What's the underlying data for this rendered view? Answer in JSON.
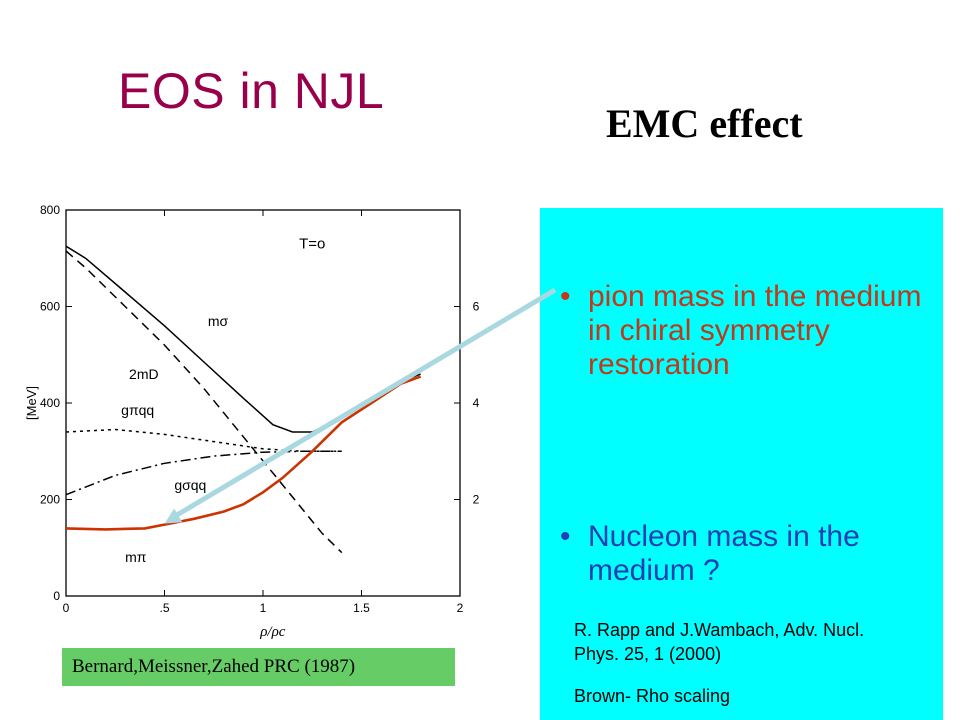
{
  "slide": {
    "title": "EOS in NJL",
    "subtitle": "EMC effect",
    "caption": "Bernard,Meissner,Zahed PRC (1987)"
  },
  "panel": {
    "bullets": [
      "pion mass in the medium in chiral symmetry restoration",
      "Nucleon mass in the medium ?"
    ],
    "bullet_symbol": "•",
    "reference": "R. Rapp and J.Wambach, Adv. Nucl. Phys. 25, 1 (2000)",
    "note": "Brown- Rho scaling",
    "color": "#00ffff"
  },
  "chart_data": {
    "type": "line",
    "title": "",
    "annotation": "T=o",
    "xlabel": "ρ/ρc",
    "ylabel": "[MeV]",
    "xlim": [
      0,
      2
    ],
    "ylim": [
      0,
      800
    ],
    "y2lim": [
      0,
      8
    ],
    "x_ticks": [
      "0",
      ".5",
      "1",
      "1.5",
      "2"
    ],
    "y_ticks": [
      "0",
      "200",
      "400",
      "600",
      "800"
    ],
    "y2_ticks": [
      "2",
      "4",
      "6"
    ],
    "series": [
      {
        "name": "mσ",
        "style": "solid",
        "color": "#000000",
        "x": [
          0,
          0.1,
          0.3,
          0.5,
          0.7,
          0.9,
          1.05,
          1.15,
          1.25,
          1.4,
          1.55,
          1.7,
          1.8
        ],
        "y": [
          725,
          700,
          630,
          560,
          485,
          410,
          355,
          340,
          340,
          370,
          410,
          445,
          460
        ]
      },
      {
        "name": "2mD",
        "style": "dashed",
        "color": "#000000",
        "x": [
          0,
          0.1,
          0.3,
          0.5,
          0.7,
          0.9,
          1.0,
          1.1,
          1.2,
          1.3,
          1.4
        ],
        "y": [
          715,
          680,
          600,
          520,
          430,
          330,
          280,
          230,
          180,
          130,
          90
        ]
      },
      {
        "name": "gπqq",
        "style": "dotted",
        "color": "#000000",
        "x": [
          0,
          0.25,
          0.5,
          0.75,
          1.0,
          1.2,
          1.4
        ],
        "y": [
          340,
          345,
          335,
          320,
          305,
          300,
          300
        ]
      },
      {
        "name": "gσqq",
        "style": "dashdot",
        "color": "#000000",
        "x": [
          0,
          0.25,
          0.5,
          0.75,
          1.0,
          1.2,
          1.4
        ],
        "y": [
          210,
          250,
          275,
          290,
          298,
          300,
          300
        ]
      },
      {
        "name": "mπ",
        "style": "solid",
        "color": "#cc3300",
        "x": [
          0,
          0.2,
          0.4,
          0.5,
          0.65,
          0.8,
          0.9,
          1.0,
          1.1,
          1.25,
          1.4,
          1.55,
          1.7,
          1.8
        ],
        "y": [
          140,
          138,
          140,
          148,
          160,
          175,
          190,
          215,
          245,
          300,
          360,
          400,
          440,
          455
        ]
      }
    ],
    "labels": [
      {
        "text": "mσ",
        "x": 0.72,
        "y": 560
      },
      {
        "text": "2mD",
        "x": 0.32,
        "y": 450
      },
      {
        "text": "gπqq",
        "x": 0.28,
        "y": 375
      },
      {
        "text": "gσqq",
        "x": 0.55,
        "y": 220
      },
      {
        "text": "mπ",
        "x": 0.3,
        "y": 70
      }
    ],
    "arrow": {
      "from": "panel.bullets.0",
      "to_x": 0.5,
      "to_y": 150,
      "color": "#aad8e0"
    }
  }
}
